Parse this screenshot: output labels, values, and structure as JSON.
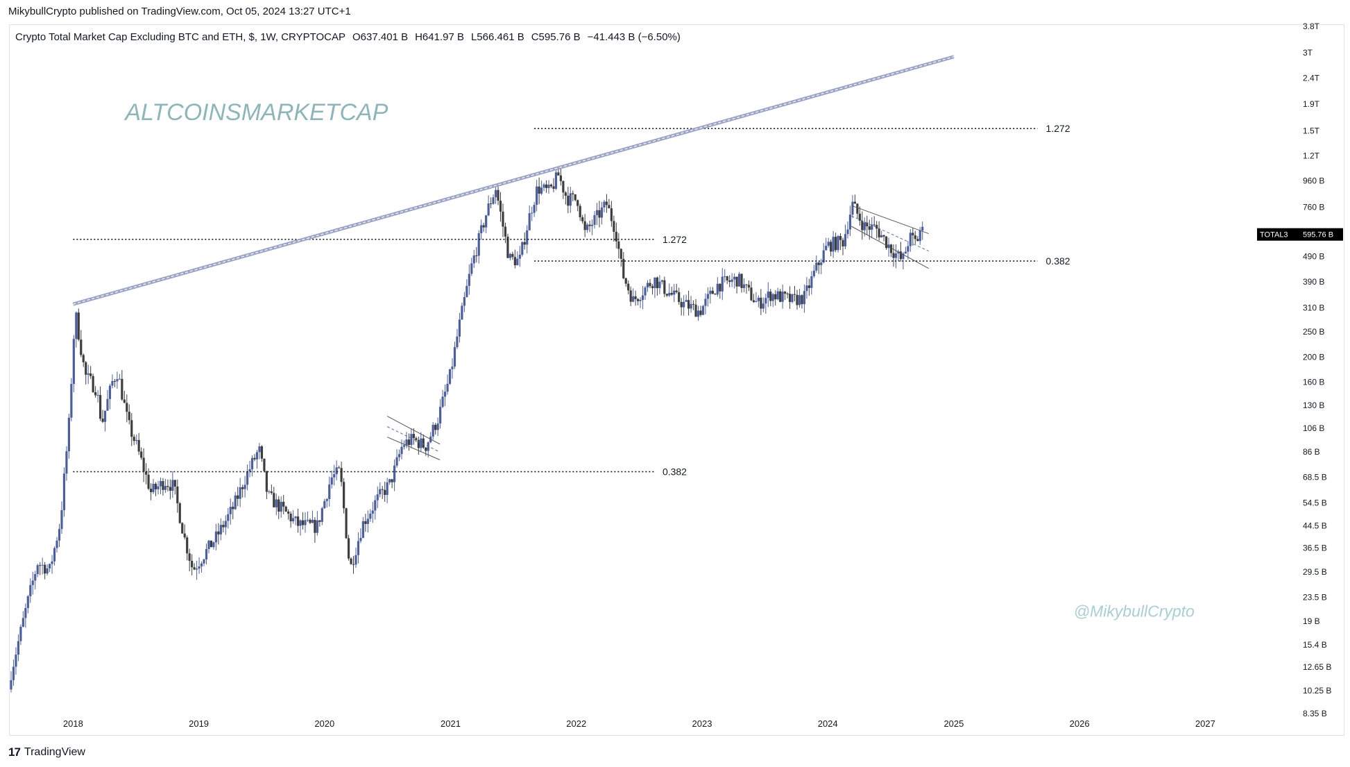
{
  "header": {
    "published": "MikybullCrypto published on TradingView.com, Oct 05, 2024 13:27 UTC+1"
  },
  "legend": {
    "title": "Crypto Total Market Cap Excluding BTC and ETH, $, 1W, CRYPTOCAP",
    "open": "O637.401 B",
    "high": "H641.97 B",
    "low": "L566.461 B",
    "close": "C595.76 B",
    "change": "−41.443 B (−6.50%)"
  },
  "footer": {
    "brand": "TradingView"
  },
  "colors": {
    "bull": "#4b5fa0",
    "bear": "#3d3d3d",
    "trendline": "#9aa4c8",
    "watermark": "#8db6b8",
    "fib": "#131722"
  },
  "chart_data": {
    "type": "candlestick",
    "title": "Crypto Total Market Cap Excluding BTC and ETH, $, 1W, CRYPTOCAP",
    "scale": "log",
    "ylim": [
      8350000000,
      3800000000000
    ],
    "xlim": [
      "2017-07-01",
      "2027-09-01"
    ],
    "y_ticks": [
      {
        "label": "3.8T",
        "value": 3800000000000
      },
      {
        "label": "3T",
        "value": 3000000000000
      },
      {
        "label": "2.4T",
        "value": 2400000000000
      },
      {
        "label": "1.9T",
        "value": 1900000000000
      },
      {
        "label": "1.5T",
        "value": 1500000000000
      },
      {
        "label": "1.2T",
        "value": 1200000000000
      },
      {
        "label": "960 B",
        "value": 960000000000
      },
      {
        "label": "760 B",
        "value": 760000000000
      },
      {
        "label": "490 B",
        "value": 490000000000
      },
      {
        "label": "390 B",
        "value": 390000000000
      },
      {
        "label": "310 B",
        "value": 310000000000
      },
      {
        "label": "250 B",
        "value": 250000000000
      },
      {
        "label": "200 B",
        "value": 200000000000
      },
      {
        "label": "160 B",
        "value": 160000000000
      },
      {
        "label": "130 B",
        "value": 130000000000
      },
      {
        "label": "106 B",
        "value": 106000000000
      },
      {
        "label": "86 B",
        "value": 86000000000
      },
      {
        "label": "68.5 B",
        "value": 68500000000
      },
      {
        "label": "54.5 B",
        "value": 54500000000
      },
      {
        "label": "44.5 B",
        "value": 44500000000
      },
      {
        "label": "36.5 B",
        "value": 36500000000
      },
      {
        "label": "29.5 B",
        "value": 29500000000
      },
      {
        "label": "23.5 B",
        "value": 23500000000
      },
      {
        "label": "19 B",
        "value": 19000000000
      },
      {
        "label": "15.4 B",
        "value": 15400000000
      },
      {
        "label": "12.65 B",
        "value": 12650000000
      },
      {
        "label": "10.25 B",
        "value": 10250000000
      },
      {
        "label": "8.35 B",
        "value": 8350000000
      }
    ],
    "x_ticks": [
      {
        "label": "2018",
        "date": "2018-01-01"
      },
      {
        "label": "2019",
        "date": "2019-01-01"
      },
      {
        "label": "2020",
        "date": "2020-01-01"
      },
      {
        "label": "2021",
        "date": "2021-01-01"
      },
      {
        "label": "2022",
        "date": "2022-01-01"
      },
      {
        "label": "2023",
        "date": "2023-01-01"
      },
      {
        "label": "2024",
        "date": "2024-01-01"
      },
      {
        "label": "2025",
        "date": "2025-01-01"
      },
      {
        "label": "2026",
        "date": "2026-01-01"
      },
      {
        "label": "2027",
        "date": "2027-01-01"
      }
    ],
    "price_path": [
      [
        "2017-07-05",
        12000000000.0
      ],
      [
        "2017-08-20",
        22000000000.0
      ],
      [
        "2017-09-20",
        32000000000.0
      ],
      [
        "2017-10-25",
        30000000000.0
      ],
      [
        "2017-11-25",
        46000000000.0
      ],
      [
        "2017-12-20",
        110000000000.0
      ],
      [
        "2018-01-07",
        300000000000.0
      ],
      [
        "2018-02-05",
        170000000000.0
      ],
      [
        "2018-03-10",
        150000000000.0
      ],
      [
        "2018-03-25",
        110000000000.0
      ],
      [
        "2018-04-25",
        160000000000.0
      ],
      [
        "2018-05-10",
        175000000000.0
      ],
      [
        "2018-06-10",
        110000000000.0
      ],
      [
        "2018-07-05",
        90000000000.0
      ],
      [
        "2018-08-15",
        60000000000.0
      ],
      [
        "2018-09-25",
        66000000000.0
      ],
      [
        "2018-10-20",
        63000000000.0
      ],
      [
        "2018-11-20",
        40000000000.0
      ],
      [
        "2018-12-15",
        30000000000.0
      ],
      [
        "2019-01-20",
        35000000000.0
      ],
      [
        "2019-02-20",
        40000000000.0
      ],
      [
        "2019-04-10",
        52000000000.0
      ],
      [
        "2019-05-20",
        70000000000.0
      ],
      [
        "2019-06-25",
        88000000000.0
      ],
      [
        "2019-07-20",
        58000000000.0
      ],
      [
        "2019-09-10",
        50000000000.0
      ],
      [
        "2019-10-15",
        45000000000.0
      ],
      [
        "2019-12-10",
        44000000000.0
      ],
      [
        "2020-01-20",
        68000000000.0
      ],
      [
        "2020-02-15",
        72000000000.0
      ],
      [
        "2020-03-15",
        30000000000.0
      ],
      [
        "2020-04-20",
        45000000000.0
      ],
      [
        "2020-06-01",
        56000000000.0
      ],
      [
        "2020-07-10",
        65000000000.0
      ],
      [
        "2020-08-15",
        92000000000.0
      ],
      [
        "2020-09-15",
        96000000000.0
      ],
      [
        "2020-10-20",
        90000000000.0
      ],
      [
        "2020-11-25",
        115000000000.0
      ],
      [
        "2020-12-31",
        170000000000.0
      ],
      [
        "2021-01-25",
        260000000000.0
      ],
      [
        "2021-03-01",
        440000000000.0
      ],
      [
        "2021-04-15",
        720000000000.0
      ],
      [
        "2021-05-12",
        900000000000.0
      ],
      [
        "2021-06-20",
        480000000000.0
      ],
      [
        "2021-07-20",
        470000000000.0
      ],
      [
        "2021-08-20",
        720000000000.0
      ],
      [
        "2021-09-10",
        900000000000.0
      ],
      [
        "2021-10-15",
        870000000000.0
      ],
      [
        "2021-11-10",
        1010000000000.0
      ],
      [
        "2021-12-05",
        820000000000.0
      ],
      [
        "2022-01-05",
        810000000000.0
      ],
      [
        "2022-01-25",
        600000000000.0
      ],
      [
        "2022-03-30",
        780000000000.0
      ],
      [
        "2022-04-25",
        620000000000.0
      ],
      [
        "2022-05-15",
        420000000000.0
      ],
      [
        "2022-06-15",
        330000000000.0
      ],
      [
        "2022-08-15",
        400000000000.0
      ],
      [
        "2022-09-20",
        360000000000.0
      ],
      [
        "2022-11-10",
        320000000000.0
      ],
      [
        "2022-12-25",
        300000000000.0
      ],
      [
        "2023-02-15",
        380000000000.0
      ],
      [
        "2023-04-15",
        400000000000.0
      ],
      [
        "2023-06-12",
        320000000000.0
      ],
      [
        "2023-07-20",
        350000000000.0
      ],
      [
        "2023-09-20",
        330000000000.0
      ],
      [
        "2023-10-25",
        340000000000.0
      ],
      [
        "2023-11-25",
        430000000000.0
      ],
      [
        "2023-12-31",
        540000000000.0
      ],
      [
        "2024-02-15",
        560000000000.0
      ],
      [
        "2024-03-12",
        780000000000.0
      ],
      [
        "2024-04-15",
        640000000000.0
      ],
      [
        "2024-05-20",
        630000000000.0
      ],
      [
        "2024-07-05",
        520000000000.0
      ],
      [
        "2024-08-05",
        470000000000.0
      ],
      [
        "2024-08-25",
        580000000000.0
      ],
      [
        "2024-09-15",
        555000000000.0
      ],
      [
        "2024-09-28",
        637000000000.0
      ],
      [
        "2024-10-05",
        596000000000.0
      ]
    ],
    "current_price_label": {
      "symbol": "TOTAL3",
      "value": "595.76 B"
    },
    "annotations": {
      "watermark": "ALTCOINSMARKETCAP",
      "author": "@MikybullCrypto",
      "fib_levels": [
        {
          "label": "1.272",
          "value": 570000000000,
          "from": "2018-01-01",
          "to": "2022-08-15"
        },
        {
          "label": "0.382",
          "value": 72000000000,
          "from": "2018-01-01",
          "to": "2022-08-15"
        },
        {
          "label": "1.272",
          "value": 1530000000000,
          "from": "2021-09-01",
          "to": "2025-09-01"
        },
        {
          "label": "0.382",
          "value": 470000000000,
          "from": "2021-09-01",
          "to": "2025-09-01"
        }
      ],
      "trendline": {
        "from": [
          "2018-01-01",
          320000000000
        ],
        "to": [
          "2025-01-01",
          2900000000000
        ]
      }
    }
  }
}
